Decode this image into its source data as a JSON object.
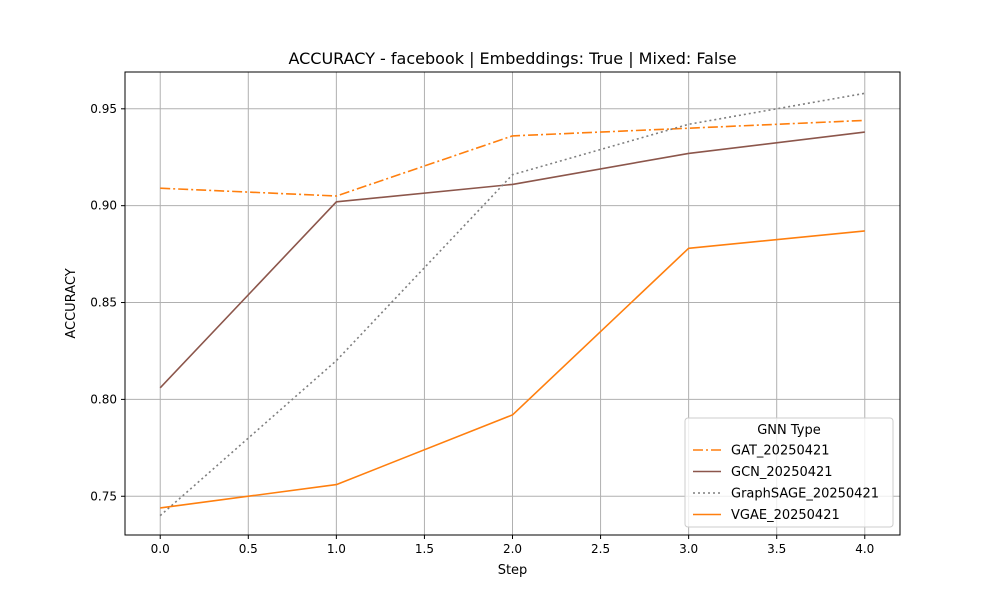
{
  "chart_data": {
    "type": "line",
    "title": "ACCURACY - facebook | Embeddings: True | Mixed: False",
    "xlabel": "Step",
    "ylabel": "ACCURACY",
    "xlim": [
      -0.2,
      4.2
    ],
    "ylim": [
      0.73,
      0.969
    ],
    "xticks": [
      0.0,
      0.5,
      1.0,
      1.5,
      2.0,
      2.5,
      3.0,
      3.5,
      4.0
    ],
    "xtick_labels": [
      "0.0",
      "0.5",
      "1.0",
      "1.5",
      "2.0",
      "2.5",
      "3.0",
      "3.5",
      "4.0"
    ],
    "yticks": [
      0.75,
      0.8,
      0.85,
      0.9,
      0.95
    ],
    "ytick_labels": [
      "0.75",
      "0.80",
      "0.85",
      "0.90",
      "0.95"
    ],
    "grid": true,
    "legend": {
      "title": "GNN Type",
      "placement": "lower-right"
    },
    "x": [
      0,
      1,
      2,
      3,
      4
    ],
    "series": [
      {
        "name": "GAT_20250421",
        "color": "#ff7f0e",
        "style": "dashdot",
        "values": [
          0.909,
          0.905,
          0.936,
          0.94,
          0.944
        ]
      },
      {
        "name": "GCN_20250421",
        "color": "#8c564b",
        "style": "solid",
        "values": [
          0.806,
          0.902,
          0.911,
          0.927,
          0.938
        ]
      },
      {
        "name": "GraphSAGE_20250421",
        "color": "#7f7f7f",
        "style": "dotted",
        "values": [
          0.74,
          0.82,
          0.916,
          0.942,
          0.958
        ]
      },
      {
        "name": "VGAE_20250421",
        "color": "#ff7f0e",
        "style": "solid",
        "values": [
          0.744,
          0.756,
          0.792,
          0.878,
          0.887
        ]
      }
    ]
  }
}
